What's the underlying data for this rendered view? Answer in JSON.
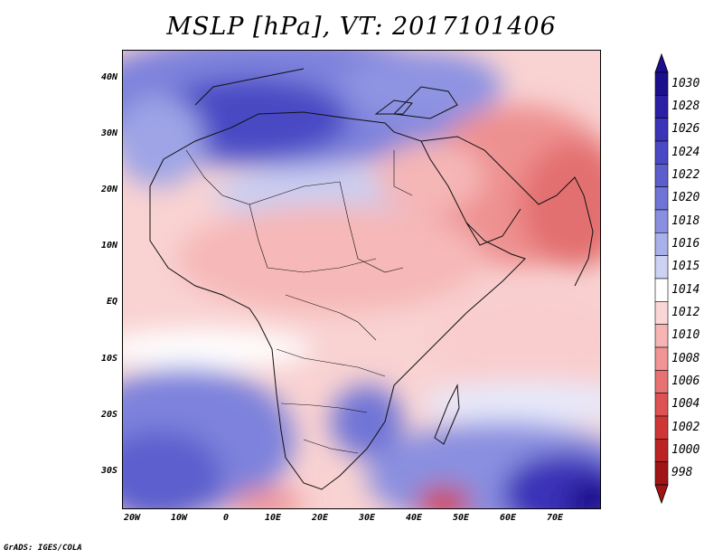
{
  "title": "MSLP [hPa], VT: 2017101406",
  "credit": "GrADS: IGES/COLA",
  "y_ticks": [
    "40N",
    "30N",
    "20N",
    "10N",
    "EQ",
    "10S",
    "20S",
    "30S"
  ],
  "x_ticks": [
    "20W",
    "10W",
    "0",
    "10E",
    "20E",
    "30E",
    "40E",
    "50E",
    "60E",
    "70E"
  ],
  "colorbar": {
    "labels": [
      "1030",
      "1028",
      "1026",
      "1024",
      "1022",
      "1020",
      "1018",
      "1016",
      "1015",
      "1014",
      "1012",
      "1010",
      "1008",
      "1006",
      "1004",
      "1002",
      "1000",
      "998"
    ],
    "colors": [
      "#1a0f8c",
      "#2b1fa6",
      "#3b33b8",
      "#4a48c4",
      "#5c5ecd",
      "#6f74d6",
      "#8a8fe0",
      "#aab0ea",
      "#cdd2f4",
      "#ffffff",
      "#fbd6d6",
      "#f6b4b4",
      "#f09494",
      "#e77272",
      "#dd5252",
      "#cf3737",
      "#bc2424",
      "#a01515"
    ]
  }
}
